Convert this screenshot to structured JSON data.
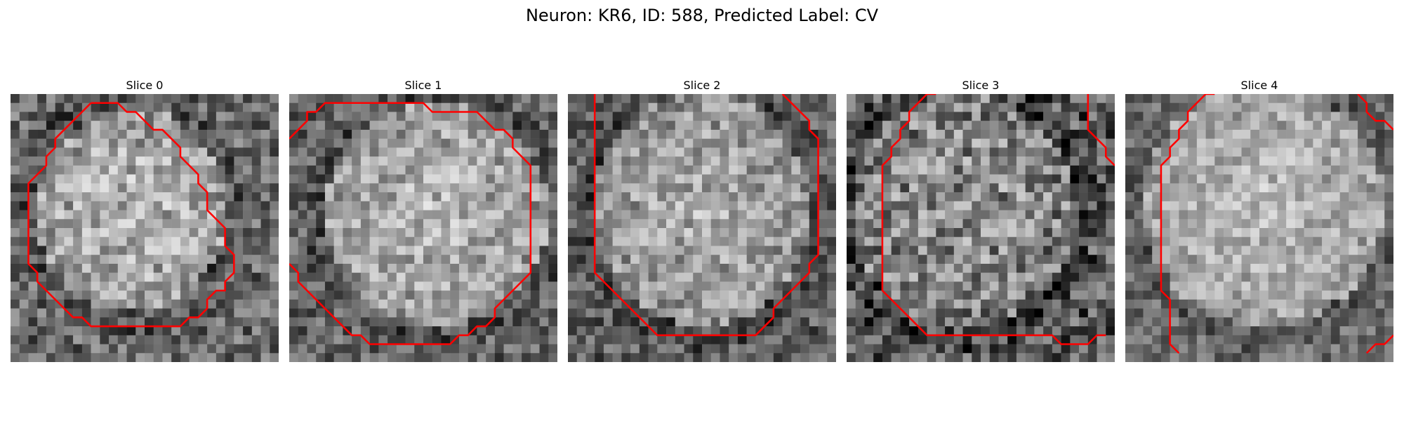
{
  "figure": {
    "title": "Neuron: KR6, ID: 588, Predicted Label: CV"
  },
  "panels": [
    {
      "title": "Slice 0"
    },
    {
      "title": "Slice 1"
    },
    {
      "title": "Slice 2"
    },
    {
      "title": "Slice 3"
    },
    {
      "title": "Slice 4"
    }
  ],
  "colors": {
    "contour": "#ff0000"
  }
}
